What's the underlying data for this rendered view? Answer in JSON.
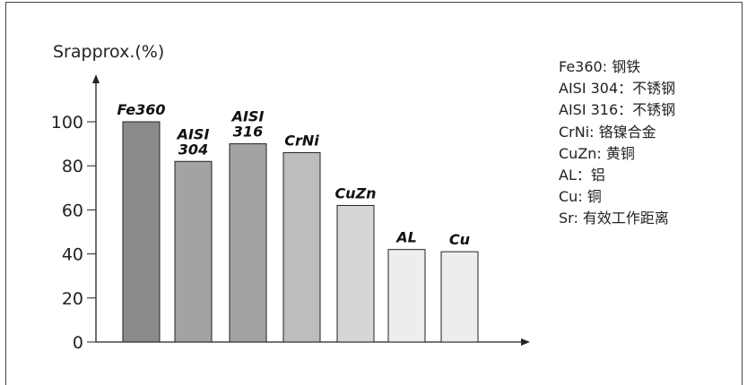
{
  "chart_data": {
    "type": "bar",
    "ylabel": "Srapprox.(%)",
    "ylim": [
      0,
      100
    ],
    "yticks": [
      0,
      20,
      40,
      60,
      80,
      100
    ],
    "grid": false,
    "categories": [
      "Fe360",
      "AISI 304",
      "AISI 316",
      "CrNi",
      "CuZn",
      "AL",
      "Cu"
    ],
    "values": [
      100,
      82,
      90,
      86,
      62,
      42,
      41
    ],
    "bar_colors": [
      "#8a8a8a",
      "#a3a3a3",
      "#a3a3a3",
      "#bdbdbd",
      "#d6d6d6",
      "#ededed",
      "#ededed"
    ],
    "legend_position": "right",
    "legend": [
      "Fe360: 钢铁",
      "AISI 304：不锈钢",
      "AISI 316：不锈钢",
      "CrNi: 铬镍合金",
      "CuZn: 黄铜",
      "AL：铝",
      "Cu: 铜",
      "Sr: 有效工作距离"
    ]
  }
}
